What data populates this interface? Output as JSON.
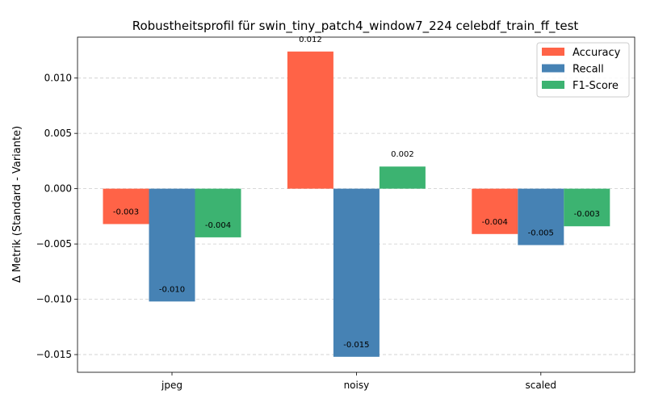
{
  "chart_data": {
    "type": "bar",
    "title": "Robustheitsprofil für swin_tiny_patch4_window7_224 celebdf_train_ff_test",
    "xlabel": "",
    "ylabel": "Δ Metrik (Standard - Variante)",
    "categories": [
      "jpeg",
      "noisy",
      "scaled"
    ],
    "series": [
      {
        "name": "Accuracy",
        "color": "#ff6347",
        "values": [
          -0.0032,
          0.0124,
          -0.0041
        ],
        "labels": [
          "-0.003",
          "0.012",
          "-0.004"
        ]
      },
      {
        "name": "Recall",
        "color": "#4682b4",
        "values": [
          -0.0102,
          -0.0152,
          -0.0051
        ],
        "labels": [
          "-0.010",
          "-0.015",
          "-0.005"
        ]
      },
      {
        "name": "F1-Score",
        "color": "#3cb371",
        "values": [
          -0.0044,
          0.002,
          -0.0034
        ],
        "labels": [
          "-0.004",
          "0.002",
          "-0.003"
        ]
      }
    ],
    "ylim": [
      -0.0166,
      0.0137
    ],
    "yticks": [
      -0.015,
      -0.01,
      -0.005,
      0.0,
      0.005,
      0.01
    ],
    "ytick_labels": [
      "−0.015",
      "−0.010",
      "−0.005",
      "0.000",
      "0.005",
      "0.010"
    ],
    "grid": true,
    "legend_position": "top-right"
  }
}
